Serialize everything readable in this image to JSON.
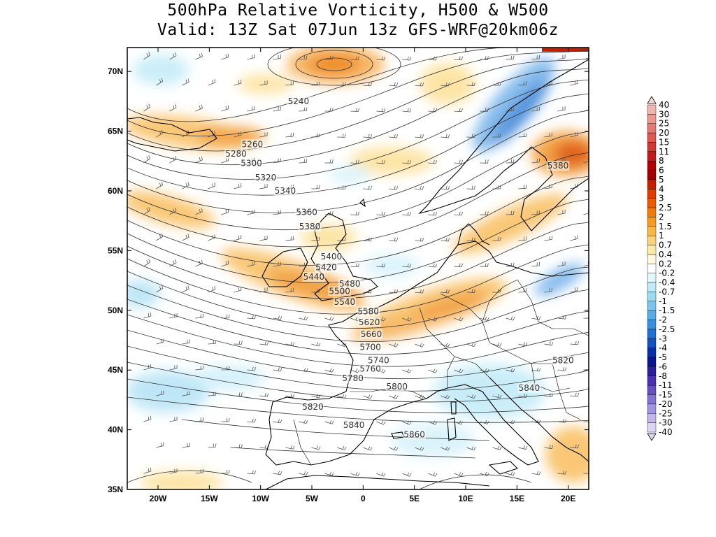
{
  "title": {
    "line1": "500hPa Relative Vorticity, H500 & W500",
    "line2": "Valid: 13Z Sat 07Jun 13z GFS-WRF@20km06z"
  },
  "axes": {
    "lat_labels": [
      "70N",
      "65N",
      "60N",
      "55N",
      "50N",
      "45N",
      "40N",
      "35N"
    ],
    "lat_values": [
      70,
      65,
      60,
      55,
      50,
      45,
      40,
      35
    ],
    "lon_labels": [
      "20W",
      "15W",
      "10W",
      "5W",
      "0",
      "5E",
      "10E",
      "15E",
      "20E"
    ],
    "lon_values": [
      -20,
      -15,
      -10,
      -5,
      0,
      5,
      10,
      15,
      20
    ],
    "lon_range": [
      -23,
      22
    ],
    "lat_range": [
      35,
      72
    ]
  },
  "contour_labels": [
    {
      "text": "5240",
      "lon": -6.3,
      "lat": 67.5
    },
    {
      "text": "5260",
      "lon": -10.8,
      "lat": 63.9
    },
    {
      "text": "5280",
      "lon": -12.4,
      "lat": 63.1
    },
    {
      "text": "5300",
      "lon": -10.9,
      "lat": 62.3
    },
    {
      "text": "5320",
      "lon": -9.5,
      "lat": 61.1
    },
    {
      "text": "5340",
      "lon": -7.6,
      "lat": 60.0
    },
    {
      "text": "5360",
      "lon": -5.5,
      "lat": 58.2
    },
    {
      "text": "5380",
      "lon": -5.2,
      "lat": 57.0
    },
    {
      "text": "5400",
      "lon": -3.1,
      "lat": 54.5
    },
    {
      "text": "5420",
      "lon": -3.6,
      "lat": 53.6
    },
    {
      "text": "5440",
      "lon": -4.8,
      "lat": 52.8
    },
    {
      "text": "5480",
      "lon": -1.3,
      "lat": 52.2
    },
    {
      "text": "5500",
      "lon": -2.3,
      "lat": 51.6
    },
    {
      "text": "5540",
      "lon": -1.8,
      "lat": 50.7
    },
    {
      "text": "5580",
      "lon": 0.5,
      "lat": 49.9
    },
    {
      "text": "5620",
      "lon": 0.6,
      "lat": 49.0
    },
    {
      "text": "5660",
      "lon": 0.8,
      "lat": 48.0
    },
    {
      "text": "5700",
      "lon": 0.7,
      "lat": 46.9
    },
    {
      "text": "5740",
      "lon": 1.5,
      "lat": 45.8
    },
    {
      "text": "5760",
      "lon": 0.7,
      "lat": 45.1
    },
    {
      "text": "5780",
      "lon": -1.0,
      "lat": 44.3
    },
    {
      "text": "5800",
      "lon": 3.3,
      "lat": 43.6
    },
    {
      "text": "5820",
      "lon": -4.9,
      "lat": 41.9
    },
    {
      "text": "5840",
      "lon": -0.9,
      "lat": 40.4
    },
    {
      "text": "5860",
      "lon": 5.0,
      "lat": 39.6
    },
    {
      "text": "5840",
      "lon": 16.2,
      "lat": 43.5
    },
    {
      "text": "5820",
      "lon": 19.5,
      "lat": 45.8
    },
    {
      "text": "5380",
      "lon": 19.0,
      "lat": 62.1
    }
  ],
  "colorbar": {
    "labels": [
      "40",
      "30",
      "25",
      "20",
      "15",
      "11",
      "8",
      "6",
      "5",
      "4",
      "3",
      "2.5",
      "2",
      "1.5",
      "1",
      "0.7",
      "0.4",
      "0.2",
      "-0.2",
      "-0.4",
      "-0.7",
      "-1",
      "-1.5",
      "-2",
      "-2.5",
      "-3",
      "-4",
      "-5",
      "-6",
      "-8",
      "-11",
      "-15",
      "-20",
      "-25",
      "-30",
      "-40"
    ],
    "colors": [
      "#f9d7d2",
      "#f2b5ad",
      "#ec9890",
      "#e47a72",
      "#dc5a52",
      "#d03a33",
      "#c01a1a",
      "#b30000",
      "#a00000",
      "#c81e00",
      "#e03c00",
      "#ec5c00",
      "#f07c08",
      "#f59c20",
      "#f9b845",
      "#fcd278",
      "#fde8a8",
      "#fff8dc",
      "#ffffff",
      "#e0f7fb",
      "#c0ecf7",
      "#9cdcf2",
      "#78c6ee",
      "#55aee8",
      "#3890e0",
      "#2070d4",
      "#1450c0",
      "#0a2ea8",
      "#0a1490",
      "#2c1d9c",
      "#4a32b0",
      "#6650c2",
      "#8472d2",
      "#a294e0",
      "#c2b6ec",
      "#ddd4f6"
    ]
  }
}
